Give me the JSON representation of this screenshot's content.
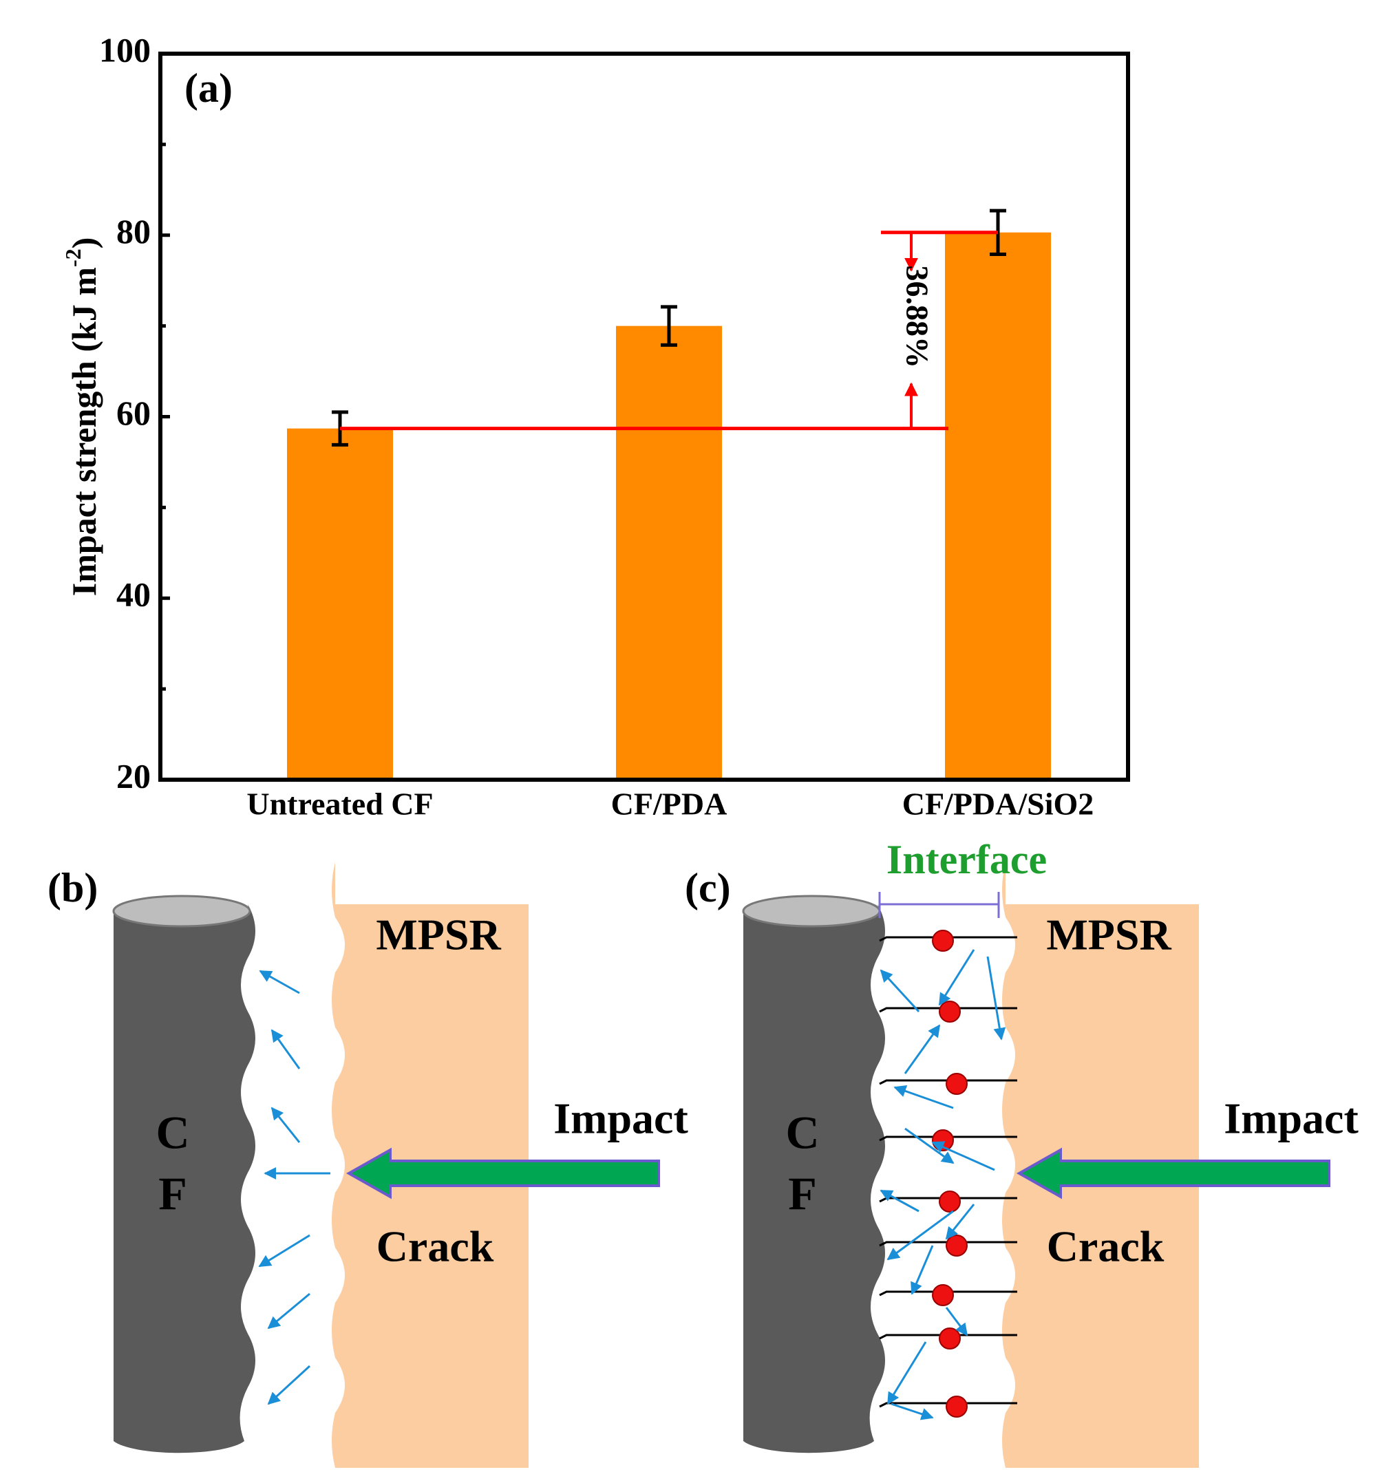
{
  "chart_data": {
    "type": "bar",
    "panel_label": "(a)",
    "ylabel": [
      "Impact strength (kJ m",
      "-2",
      ")"
    ],
    "categories": [
      "Untreated CF",
      "CF/PDA",
      "CF/PDA/SiO2"
    ],
    "values": [
      58.7,
      70.0,
      80.3
    ],
    "errors": [
      1.8,
      2.1,
      2.4
    ],
    "color": "#ff8a00",
    "ylim": [
      20,
      100
    ],
    "yticks": [
      20,
      40,
      60,
      80,
      100
    ],
    "yminorticks": [
      30,
      50,
      70,
      90
    ],
    "annotation": "36.88%"
  },
  "panels": [
    {
      "label": "(b)",
      "fiber": [
        "C",
        "F"
      ],
      "matrix": "MPSR",
      "force": "Impact",
      "crack": "Crack"
    },
    {
      "label": "(c)",
      "fiber": [
        "C",
        "F"
      ],
      "matrix": "MPSR",
      "force": "Impact",
      "crack": "Crack",
      "interface": "Interface"
    }
  ]
}
